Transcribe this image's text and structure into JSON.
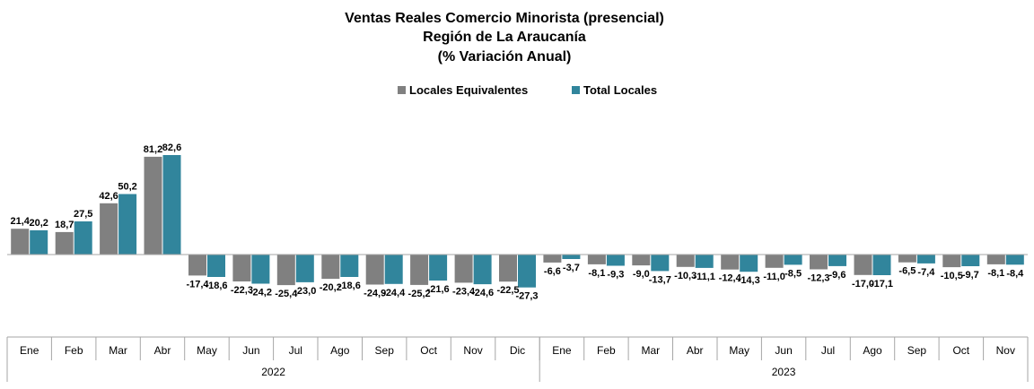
{
  "chart_data": {
    "type": "bar",
    "title_lines": [
      "Ventas Reales Comercio Minorista (presencial)",
      "Región de La Araucanía",
      "(% Variación Anual)"
    ],
    "categories": [
      "Ene",
      "Feb",
      "Mar",
      "Abr",
      "May",
      "Jun",
      "Jul",
      "Ago",
      "Sep",
      "Oct",
      "Nov",
      "Dic",
      "Ene",
      "Feb",
      "Mar",
      "Abr",
      "May",
      "Jun",
      "Jul",
      "Ago",
      "Sep",
      "Oct",
      "Nov"
    ],
    "year_groups": [
      {
        "label": "2022",
        "count": 12
      },
      {
        "label": "2023",
        "count": 11
      }
    ],
    "series": [
      {
        "name": "Locales Equivalentes",
        "color": "#808080",
        "values": [
          21.4,
          18.7,
          42.6,
          81.2,
          -17.4,
          -22.3,
          -25.4,
          -20.2,
          -24.9,
          -25.2,
          -23.4,
          -22.5,
          -6.6,
          -8.1,
          -9.0,
          -10.3,
          -12.4,
          -11.0,
          -12.3,
          -17.0,
          -6.5,
          -10.5,
          -8.1
        ],
        "labels": [
          "21,4",
          "18,7",
          "42,6",
          "81,2",
          "-17,4",
          "-22,3",
          "-25,4",
          "-20,2",
          "-24,9",
          "-25,2",
          "-23,4",
          "-22,5",
          "-6,6",
          "-8,1",
          "-9,0",
          "-10,3",
          "-12,4",
          "-11,0",
          "-12,3",
          "-17,0",
          "-6,5",
          "-10,5",
          "-8,1"
        ]
      },
      {
        "name": "Total Locales",
        "color": "#31859C",
        "values": [
          20.2,
          27.5,
          50.2,
          82.6,
          -18.6,
          -24.2,
          -23.0,
          -18.6,
          -24.4,
          -21.6,
          -24.6,
          -27.3,
          -3.7,
          -9.3,
          -13.7,
          -11.1,
          -14.3,
          -8.5,
          -9.6,
          -17.1,
          -7.4,
          -9.7,
          -8.4
        ],
        "labels": [
          "20,2",
          "27,5",
          "50,2",
          "82,6",
          "-18,6",
          "-24,2",
          "-23,0",
          "-18,6",
          "-24,4",
          "-21,6",
          "-24,6",
          "-27,3",
          "-3,7",
          "-9,3",
          "-13,7",
          "-11,1",
          "-14,3",
          "-8,5",
          "-9,6",
          "-17,1",
          "-7,4",
          "-9,7",
          "-8,4"
        ]
      }
    ],
    "legend_position": "top-center",
    "grid": false,
    "ylim": [
      -45,
      100
    ]
  }
}
